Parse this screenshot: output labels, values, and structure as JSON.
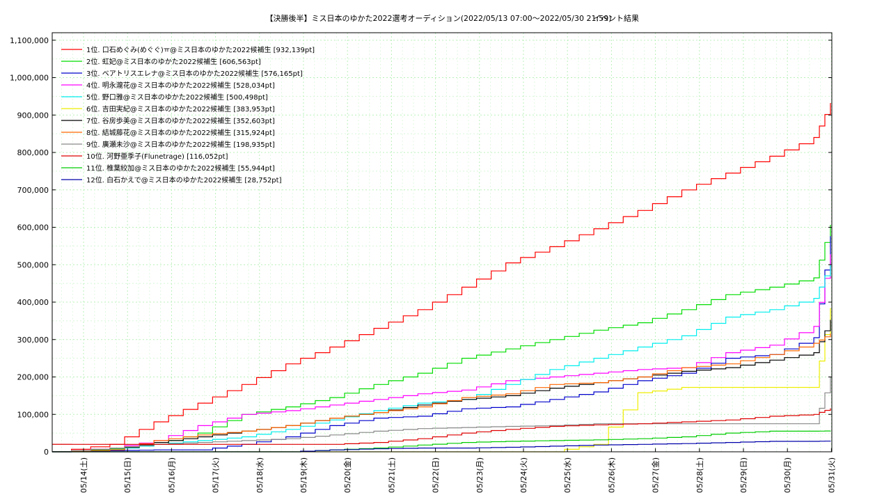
{
  "chart_data": {
    "type": "line",
    "title": "【決勝後半】ミス日本のゆかた2022選考オーディション(2022/05/13 07:00～2022/05/30 21:59)",
    "subtitle": "イベント結果",
    "xlabel": "",
    "ylabel": "",
    "xlim": [
      "2022-05-13T07:00",
      "2022-05-30T22:00"
    ],
    "ylim": [
      0,
      1120000
    ],
    "grid": true,
    "legend_position": "top-left",
    "x_tick_labels": [
      "05/14(土)",
      "05/15(日)",
      "05/16(月)",
      "05/17(火)",
      "05/18(水)",
      "05/19(木)",
      "05/20(金)",
      "05/21(土)",
      "05/22(日)",
      "05/23(月)",
      "05/24(火)",
      "05/25(水)",
      "05/26(木)",
      "05/27(金)",
      "05/28(土)",
      "05/29(日)",
      "05/30(月)",
      "05/31(火)"
    ],
    "y_ticks": [
      0,
      100000,
      200000,
      300000,
      400000,
      500000,
      600000,
      700000,
      800000,
      900000,
      1000000,
      1100000
    ],
    "y_tick_labels": [
      "0",
      "100,000",
      "200,000",
      "300,000",
      "400,000",
      "500,000",
      "600,000",
      "700,000",
      "800,000",
      "900,000",
      "1,000,000",
      "1,100,000"
    ],
    "series_day_labels": [
      "05/13",
      "05/14",
      "05/15",
      "05/16",
      "05/17",
      "05/18",
      "05/19",
      "05/20",
      "05/21",
      "05/22",
      "05/23",
      "05/24",
      "05/25",
      "05/26",
      "05/27",
      "05/28",
      "05/29",
      "05/30",
      "05/30 21:59"
    ],
    "series": [
      {
        "name": "1位. 口石めぐみ(めぐぐ)ㅠ@ミス日本のゆかた2022候補生 [932,139pt]",
        "color": "#ff0000",
        "values": [
          0,
          20000,
          80000,
          130000,
          180000,
          235000,
          280000,
          330000,
          380000,
          440000,
          505000,
          548000,
          596000,
          645000,
          700000,
          745000,
          790000,
          840000,
          932139
        ]
      },
      {
        "name": "2位. 虹妃@ミス日本のゆかた2022候補生 [606,563pt]",
        "color": "#00dd00",
        "values": [
          0,
          8000,
          20000,
          50000,
          100000,
          120000,
          145000,
          180000,
          210000,
          250000,
          275000,
          300000,
          325000,
          345000,
          380000,
          420000,
          440000,
          465000,
          606563
        ]
      },
      {
        "name": "3位. ベアトリスエレナ@ミス日本のゆかた2022候補生 [576,165pt]",
        "color": "#0000cc",
        "values": [
          0,
          3000,
          5000,
          5000,
          20000,
          40000,
          70000,
          90000,
          95000,
          115000,
          120000,
          140000,
          160000,
          190000,
          210000,
          250000,
          260000,
          305000,
          576165
        ]
      },
      {
        "name": "4位. 明永瀧花@ミス日本のゆかた2022候補生 [528,034pt]",
        "color": "#ff00ff",
        "values": [
          0,
          10000,
          30000,
          70000,
          100000,
          110000,
          125000,
          140000,
          155000,
          165000,
          190000,
          200000,
          210000,
          220000,
          225000,
          265000,
          285000,
          335000,
          528034
        ]
      },
      {
        "name": "5位. 野口雅@ミス日本のゆかた2022候補生 [500,498pt]",
        "color": "#00eeee",
        "values": [
          0,
          5000,
          20000,
          30000,
          40000,
          60000,
          85000,
          110000,
          130000,
          140000,
          180000,
          220000,
          250000,
          280000,
          310000,
          360000,
          380000,
          410000,
          500498
        ]
      },
      {
        "name": "6位. 吉田実紀@ミス日本のゆかた2022候補生 [383,953pt]",
        "color": "#eeee00",
        "values": [
          0,
          0,
          0,
          0,
          0,
          0,
          0,
          0,
          0,
          0,
          0,
          0,
          20000,
          158000,
          172000,
          172000,
          172000,
          172000,
          383953
        ]
      },
      {
        "name": "7位. 谷房歩美@ミス日本のゆかた2022候補生 [352,603pt]",
        "color": "#000000",
        "values": [
          0,
          5000,
          25000,
          40000,
          55000,
          70000,
          90000,
          105000,
          125000,
          140000,
          150000,
          170000,
          185000,
          200000,
          215000,
          225000,
          245000,
          265000,
          352603
        ]
      },
      {
        "name": "8位. 結城藤花@ミス日本のゆかた2022候補生 [315,924pt]",
        "color": "#ff6600",
        "values": [
          0,
          5000,
          30000,
          45000,
          55000,
          70000,
          90000,
          105000,
          120000,
          145000,
          155000,
          180000,
          185000,
          200000,
          225000,
          235000,
          260000,
          290000,
          315924
        ]
      },
      {
        "name": "9位. 廣瀬未沙@ミス日本のゆかた2022候補生 [198,935pt]",
        "color": "#888888",
        "values": [
          0,
          10000,
          20000,
          25000,
          30000,
          35000,
          45000,
          55000,
          62000,
          65000,
          68000,
          70000,
          75000,
          75000,
          75000,
          75000,
          75000,
          75000,
          198935
        ]
      },
      {
        "name": "10位. 河野亜季子(Flunetrage) [116,052pt]",
        "color": "#dd0000",
        "values": [
          20000,
          20000,
          20000,
          20000,
          20000,
          20000,
          20000,
          25000,
          35000,
          50000,
          60000,
          68000,
          72000,
          75000,
          80000,
          85000,
          95000,
          100000,
          116052
        ]
      },
      {
        "name": "11位. 椎葉絞加@ミス日本のゆかた2022候補生 [55,944pt]",
        "color": "#00cc00",
        "values": [
          0,
          0,
          0,
          0,
          0,
          0,
          5000,
          10000,
          18000,
          25000,
          28000,
          30000,
          32000,
          35000,
          40000,
          50000,
          55000,
          55000,
          55944
        ]
      },
      {
        "name": "12位. 白石かえで@ミス日本のゆかた2022候補生 [28,752pt]",
        "color": "#0000aa",
        "values": [
          0,
          0,
          0,
          0,
          0,
          0,
          5000,
          8000,
          10000,
          10000,
          12000,
          15000,
          18000,
          20000,
          22000,
          25000,
          28000,
          28000,
          28752
        ]
      }
    ]
  }
}
